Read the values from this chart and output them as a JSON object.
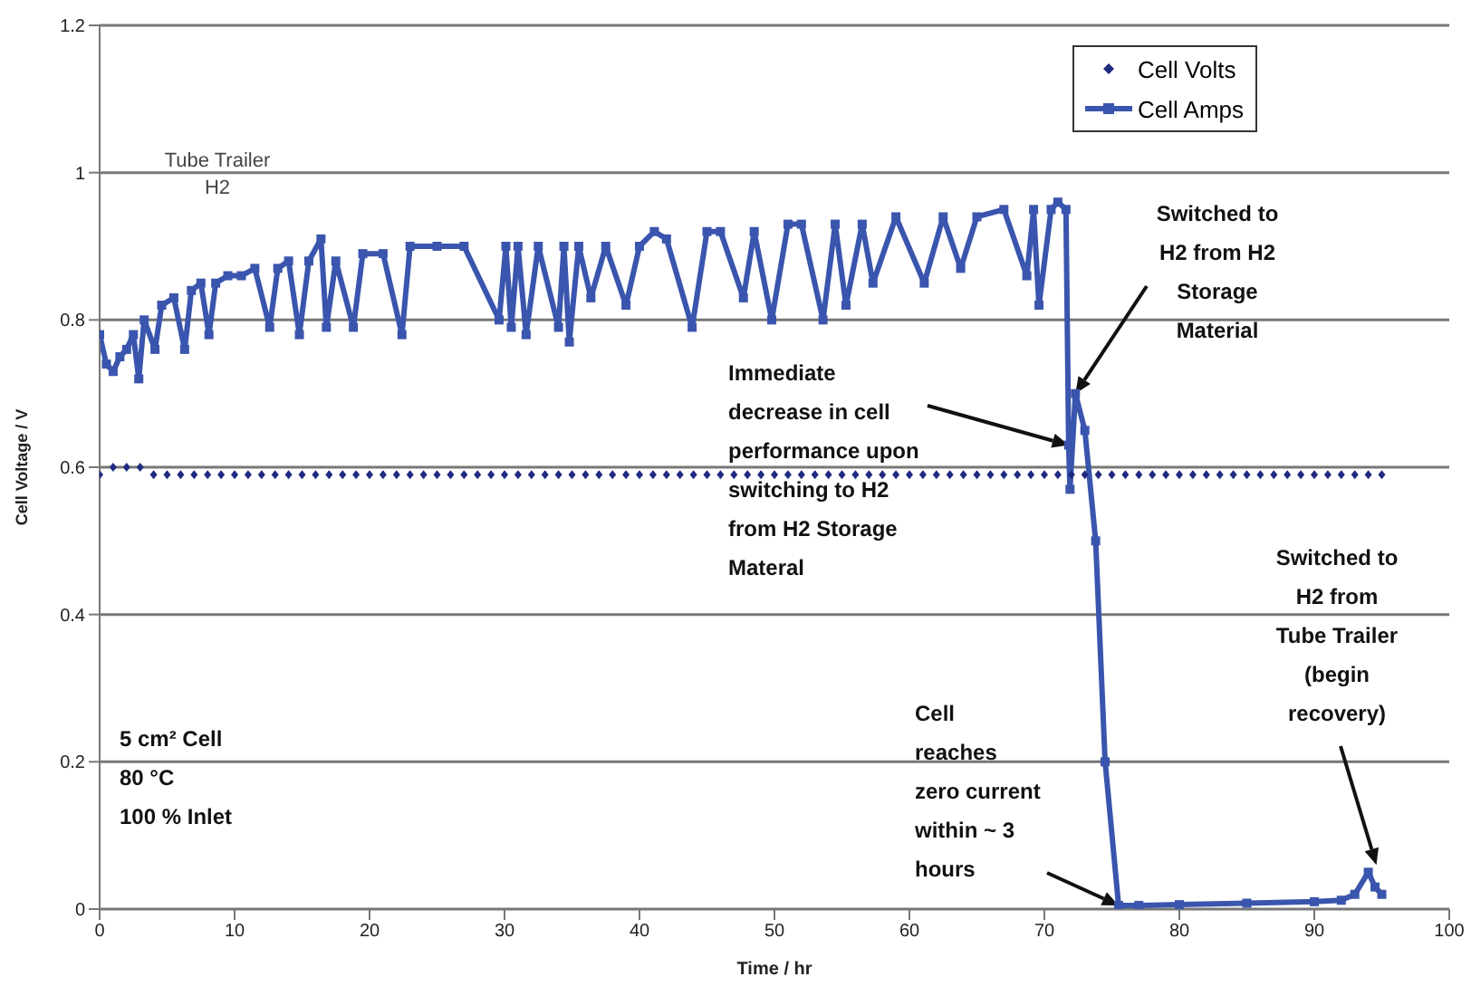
{
  "chart_data": {
    "type": "line",
    "xlabel": "Time / hr",
    "ylabel": "Cell Voltage / V",
    "xlim": [
      0,
      100
    ],
    "xticks": [
      0,
      10,
      20,
      30,
      40,
      50,
      60,
      70,
      80,
      90,
      100
    ],
    "ylim": [
      0,
      1.2
    ],
    "yticks": [
      0,
      0.2,
      0.4,
      0.6,
      0.8,
      1,
      1.2
    ],
    "grid": "y",
    "legend": "top right",
    "series": [
      {
        "name": "Cell Volts",
        "type": "scatter",
        "marker": "diamond",
        "color": "#1f2a80",
        "x": [
          0,
          1,
          2,
          3,
          4,
          5,
          6,
          7,
          8,
          9,
          10,
          11,
          12,
          13,
          14,
          15,
          16,
          17,
          18,
          19,
          20,
          21,
          22,
          23,
          24,
          25,
          26,
          27,
          28,
          29,
          30,
          31,
          32,
          33,
          34,
          35,
          36,
          37,
          38,
          39,
          40,
          41,
          42,
          43,
          44,
          45,
          46,
          47,
          48,
          49,
          50,
          51,
          52,
          53,
          54,
          55,
          56,
          57,
          58,
          59,
          60,
          61,
          62,
          63,
          64,
          65,
          66,
          67,
          68,
          69,
          70,
          71,
          72,
          73,
          74,
          75,
          76,
          77,
          78,
          79,
          80,
          81,
          82,
          83,
          84,
          85,
          86,
          87,
          88,
          89,
          90,
          91,
          92,
          93,
          94,
          95
        ],
        "values": [
          0.59,
          0.6,
          0.6,
          0.6,
          0.59,
          0.59,
          0.59,
          0.59,
          0.59,
          0.59,
          0.59,
          0.59,
          0.59,
          0.59,
          0.59,
          0.59,
          0.59,
          0.59,
          0.59,
          0.59,
          0.59,
          0.59,
          0.59,
          0.59,
          0.59,
          0.59,
          0.59,
          0.59,
          0.59,
          0.59,
          0.59,
          0.59,
          0.59,
          0.59,
          0.59,
          0.59,
          0.59,
          0.59,
          0.59,
          0.59,
          0.59,
          0.59,
          0.59,
          0.59,
          0.59,
          0.59,
          0.59,
          0.59,
          0.59,
          0.59,
          0.59,
          0.59,
          0.59,
          0.59,
          0.59,
          0.59,
          0.59,
          0.59,
          0.59,
          0.59,
          0.59,
          0.59,
          0.59,
          0.59,
          0.59,
          0.59,
          0.59,
          0.59,
          0.59,
          0.59,
          0.59,
          0.59,
          0.59,
          0.59,
          0.59,
          0.59,
          0.59,
          0.59,
          0.59,
          0.59,
          0.59,
          0.59,
          0.59,
          0.59,
          0.59,
          0.59,
          0.59,
          0.59,
          0.59,
          0.59,
          0.59,
          0.59,
          0.59,
          0.59,
          0.59,
          0.59
        ]
      },
      {
        "name": "Cell Amps",
        "type": "line",
        "marker": "square",
        "line_style": "solid",
        "color": "#3a55ad",
        "x": [
          0,
          0.5,
          1,
          1.5,
          2,
          2.5,
          2.9,
          3.3,
          4.1,
          4.6,
          5.5,
          6.3,
          6.8,
          7.5,
          8.1,
          8.6,
          9.5,
          10.5,
          11.5,
          12.6,
          13.2,
          14,
          14.8,
          15.5,
          16.4,
          16.8,
          17.5,
          18.8,
          19.5,
          21,
          22.4,
          23,
          25,
          27,
          29.6,
          30.1,
          30.5,
          31,
          31.6,
          32.5,
          34,
          34.4,
          34.8,
          35.5,
          36.4,
          37.5,
          39,
          40,
          41.1,
          42,
          43.9,
          45,
          46,
          47.7,
          48.5,
          49.8,
          51,
          52,
          53.6,
          54.5,
          55.3,
          56.5,
          57.3,
          59,
          61.1,
          62.5,
          63.8,
          65,
          67,
          68.7,
          69.2,
          69.6,
          70.5,
          71,
          71.6,
          71.8,
          71.9,
          72.3,
          73,
          73.8,
          74.5,
          75.5,
          77,
          80,
          85,
          90,
          92,
          93,
          94,
          94.5,
          95
        ],
        "values": [
          0.78,
          0.74,
          0.73,
          0.75,
          0.76,
          0.78,
          0.72,
          0.8,
          0.76,
          0.82,
          0.83,
          0.76,
          0.84,
          0.85,
          0.78,
          0.85,
          0.86,
          0.86,
          0.87,
          0.79,
          0.87,
          0.88,
          0.78,
          0.88,
          0.91,
          0.79,
          0.88,
          0.79,
          0.89,
          0.89,
          0.78,
          0.9,
          0.9,
          0.9,
          0.8,
          0.9,
          0.79,
          0.9,
          0.78,
          0.9,
          0.79,
          0.9,
          0.77,
          0.9,
          0.83,
          0.9,
          0.82,
          0.9,
          0.92,
          0.91,
          0.79,
          0.92,
          0.92,
          0.83,
          0.92,
          0.8,
          0.93,
          0.93,
          0.8,
          0.93,
          0.82,
          0.93,
          0.85,
          0.94,
          0.85,
          0.94,
          0.87,
          0.94,
          0.95,
          0.86,
          0.95,
          0.82,
          0.95,
          0.96,
          0.95,
          0.63,
          0.57,
          0.7,
          0.65,
          0.5,
          0.2,
          0.005,
          0.005,
          0.006,
          0.008,
          0.01,
          0.012,
          0.02,
          0.05,
          0.03,
          0.02
        ]
      }
    ],
    "annotations": [
      "Tube Trailer H2",
      {
        "text": "Switched to H2 from H2 Storage Material",
        "x": 72.3,
        "y": 0.7
      },
      {
        "text": "Immediate decrease in cell performance upon switching to H2 from H2 Storage Materal",
        "x": 71.8,
        "y": 0.63
      },
      {
        "text": "Cell reaches zero current within ~ 3 hours",
        "x": 75.5,
        "y": 0.005
      },
      {
        "text": "Switched to H2 from Tube Trailer (begin recovery)",
        "x": 94.6,
        "y": 0.06
      },
      "5 cm² Cell 80 °C 100 % Inlet"
    ]
  }
}
